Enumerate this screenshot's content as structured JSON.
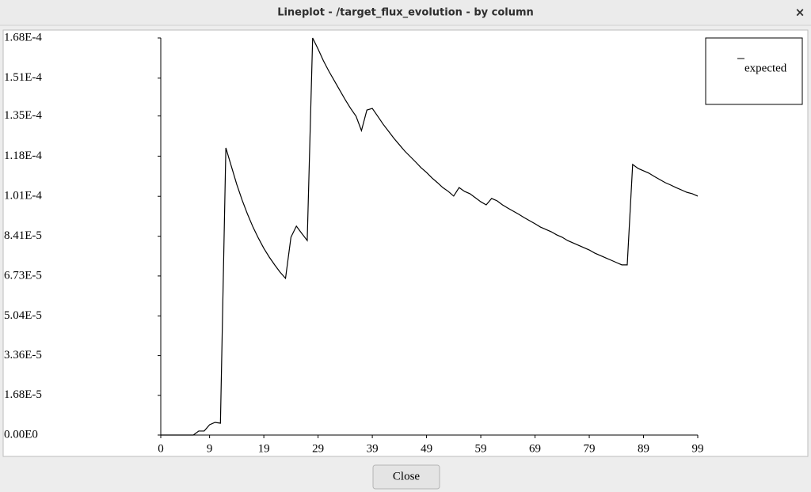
{
  "window": {
    "title": "Lineplot - /target_flux_evolution - by column",
    "close_icon": "×"
  },
  "chart_data": {
    "type": "line",
    "x": [
      0,
      1,
      2,
      3,
      4,
      5,
      6,
      7,
      8,
      9,
      10,
      11,
      12,
      13,
      14,
      15,
      16,
      17,
      18,
      19,
      20,
      21,
      22,
      23,
      24,
      25,
      26,
      27,
      28,
      29,
      30,
      31,
      32,
      33,
      34,
      35,
      36,
      37,
      38,
      39,
      40,
      41,
      42,
      43,
      44,
      45,
      46,
      47,
      48,
      49,
      50,
      51,
      52,
      53,
      54,
      55,
      56,
      57,
      58,
      59,
      60,
      61,
      62,
      63,
      64,
      65,
      66,
      67,
      68,
      69,
      70,
      71,
      72,
      73,
      74,
      75,
      76,
      77,
      78,
      79,
      80,
      81,
      82,
      83,
      84,
      85,
      86,
      87,
      88,
      89,
      90,
      91,
      92,
      93,
      94,
      95,
      96,
      97,
      98,
      99
    ],
    "series": [
      {
        "name": "expected",
        "color": "#000000",
        "values": [
          0,
          0,
          0,
          0,
          0,
          0,
          0,
          1.7e-06,
          1.7e-06,
          4.35e-06,
          5.35e-06,
          5.02e-06,
          0.0001215,
          0.0001138,
          0.0001061,
          9.94e-05,
          9.34e-05,
          8.8e-05,
          8.33e-05,
          7.9e-05,
          7.53e-05,
          7.2e-05,
          6.89e-05,
          6.63e-05,
          8.37e-05,
          8.84e-05,
          8.53e-05,
          8.23e-05,
          0.000168,
          0.0001633,
          0.0001583,
          0.0001539,
          0.0001499,
          0.0001459,
          0.0001419,
          0.0001382,
          0.0001349,
          0.0001288,
          0.0001375,
          0.0001382,
          0.0001349,
          0.0001315,
          0.0001285,
          0.0001255,
          0.0001228,
          0.0001201,
          0.0001178,
          0.0001155,
          0.0001131,
          0.0001111,
          0.0001088,
          0.0001068,
          0.0001047,
          0.0001031,
          0.0001011,
          0.0001047,
          0.0001031,
          0.0001021,
          0.0001004,
          9.87e-05,
          9.74e-05,
          0.0001001,
          9.91e-05,
          9.74e-05,
          9.6e-05,
          9.47e-05,
          9.34e-05,
          9.2e-05,
          9.07e-05,
          8.94e-05,
          8.8e-05,
          8.7e-05,
          8.6e-05,
          8.47e-05,
          8.37e-05,
          8.23e-05,
          8.13e-05,
          8.03e-05,
          7.93e-05,
          7.83e-05,
          7.7e-05,
          7.6e-05,
          7.5e-05,
          7.4e-05,
          7.3e-05,
          7.2e-05,
          7.2e-05,
          0.0001145,
          0.0001128,
          0.0001118,
          0.0001108,
          0.0001094,
          0.0001081,
          0.0001068,
          0.0001058,
          0.0001047,
          0.0001037,
          0.0001027,
          0.0001021,
          0.0001011
        ]
      }
    ],
    "xlim": [
      0,
      99
    ],
    "xticks": [
      0,
      9,
      19,
      29,
      39,
      49,
      59,
      69,
      79,
      89,
      99
    ],
    "ylim": [
      0,
      0.000168
    ],
    "yticks": [
      {
        "value": 0,
        "label": "0.00E0"
      },
      {
        "value": 1.68e-05,
        "label": "1.68E-5"
      },
      {
        "value": 3.36e-05,
        "label": "3.36E-5"
      },
      {
        "value": 5.04e-05,
        "label": "5.04E-5"
      },
      {
        "value": 6.73e-05,
        "label": "6.73E-5"
      },
      {
        "value": 8.41e-05,
        "label": "8.41E-5"
      },
      {
        "value": 0.000101,
        "label": "1.01E-4"
      },
      {
        "value": 0.000118,
        "label": "1.18E-4"
      },
      {
        "value": 0.000135,
        "label": "1.35E-4"
      },
      {
        "value": 0.000151,
        "label": "1.51E-4"
      },
      {
        "value": 0.000168,
        "label": "1.68E-4"
      }
    ],
    "grid": false,
    "legend": "top-right"
  },
  "buttons": {
    "close": "Close"
  }
}
